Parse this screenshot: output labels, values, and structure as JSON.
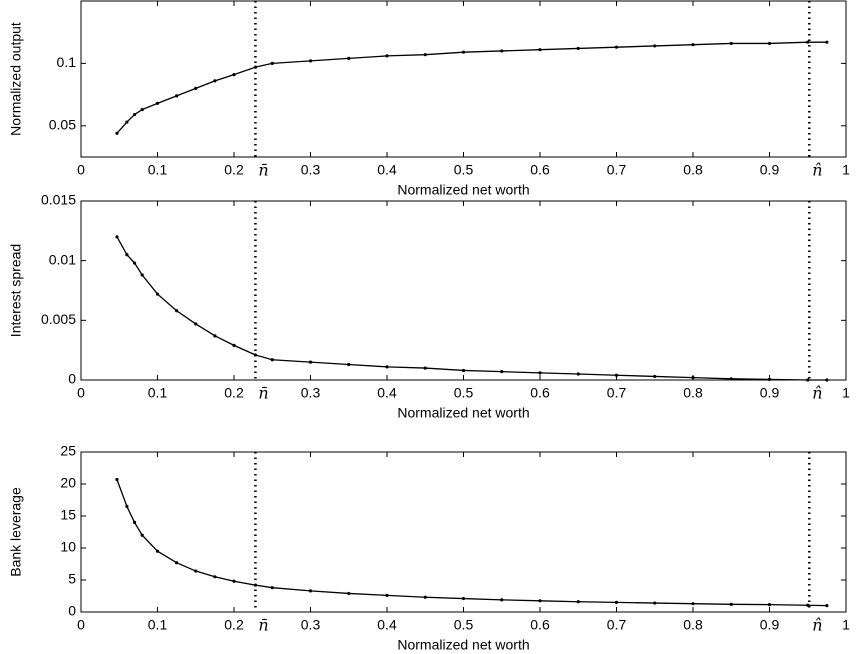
{
  "chart_data": [
    {
      "type": "line",
      "xlabel": "Normalized net worth",
      "ylabel": "Normalized output",
      "x": [
        0.047,
        0.06,
        0.07,
        0.08,
        0.1,
        0.125,
        0.15,
        0.175,
        0.2,
        0.228,
        0.25,
        0.3,
        0.35,
        0.4,
        0.45,
        0.5,
        0.55,
        0.6,
        0.65,
        0.7,
        0.75,
        0.8,
        0.85,
        0.9,
        0.95,
        0.975
      ],
      "values": [
        0.044,
        0.053,
        0.059,
        0.063,
        0.068,
        0.074,
        0.08,
        0.086,
        0.091,
        0.097,
        0.1,
        0.102,
        0.104,
        0.106,
        0.107,
        0.109,
        0.11,
        0.111,
        0.112,
        0.113,
        0.114,
        0.115,
        0.116,
        0.116,
        0.117,
        0.117
      ],
      "color": "#000000",
      "xlim": [
        0,
        1
      ],
      "ylim": [
        0.025,
        0.15
      ],
      "xticks": [
        0,
        0.1,
        0.2,
        0.3,
        0.4,
        0.5,
        0.6,
        0.7,
        0.8,
        0.9,
        1
      ],
      "yticks": [
        0.05,
        0.1
      ],
      "vlines": [
        {
          "x": 0.228,
          "label": "n̄"
        },
        {
          "x": 0.952,
          "label": "n̂"
        }
      ]
    },
    {
      "type": "line",
      "xlabel": "Normalized net worth",
      "ylabel": "Interest spread",
      "x": [
        0.047,
        0.06,
        0.07,
        0.08,
        0.1,
        0.125,
        0.15,
        0.175,
        0.2,
        0.228,
        0.25,
        0.3,
        0.35,
        0.4,
        0.45,
        0.5,
        0.55,
        0.6,
        0.65,
        0.7,
        0.75,
        0.8,
        0.85,
        0.9,
        0.95,
        0.975
      ],
      "values": [
        0.012,
        0.0105,
        0.0098,
        0.0088,
        0.0072,
        0.0058,
        0.0047,
        0.0037,
        0.0029,
        0.0021,
        0.0017,
        0.0015,
        0.0013,
        0.0011,
        0.001,
        0.0008,
        0.0007,
        0.0006,
        0.0005,
        0.0004,
        0.0003,
        0.0002,
        0.0001,
        5e-05,
        0,
        0
      ],
      "color": "#000000",
      "xlim": [
        0,
        1
      ],
      "ylim": [
        0,
        0.015
      ],
      "xticks": [
        0,
        0.1,
        0.2,
        0.3,
        0.4,
        0.5,
        0.6,
        0.7,
        0.8,
        0.9,
        1
      ],
      "yticks": [
        0,
        0.005,
        0.01,
        0.015
      ],
      "vlines": [
        {
          "x": 0.228,
          "label": "n̄"
        },
        {
          "x": 0.952,
          "label": "n̂"
        }
      ]
    },
    {
      "type": "line",
      "xlabel": "Normalized net worth",
      "ylabel": "Bank leverage",
      "x": [
        0.047,
        0.06,
        0.07,
        0.08,
        0.1,
        0.125,
        0.15,
        0.175,
        0.2,
        0.228,
        0.25,
        0.3,
        0.35,
        0.4,
        0.45,
        0.5,
        0.55,
        0.6,
        0.65,
        0.7,
        0.75,
        0.8,
        0.85,
        0.9,
        0.95,
        0.975
      ],
      "values": [
        20.7,
        16.5,
        14,
        12,
        9.5,
        7.7,
        6.4,
        5.5,
        4.8,
        4.2,
        3.8,
        3.3,
        2.9,
        2.6,
        2.3,
        2.1,
        1.9,
        1.75,
        1.6,
        1.5,
        1.4,
        1.3,
        1.2,
        1.15,
        1.05,
        1.0
      ],
      "color": "#000000",
      "xlim": [
        0,
        1
      ],
      "ylim": [
        0,
        25
      ],
      "xticks": [
        0,
        0.1,
        0.2,
        0.3,
        0.4,
        0.5,
        0.6,
        0.7,
        0.8,
        0.9,
        1
      ],
      "yticks": [
        0,
        5,
        10,
        15,
        20,
        25
      ],
      "vlines": [
        {
          "x": 0.228,
          "label": "n̄"
        },
        {
          "x": 0.952,
          "label": "n̂"
        }
      ]
    }
  ]
}
